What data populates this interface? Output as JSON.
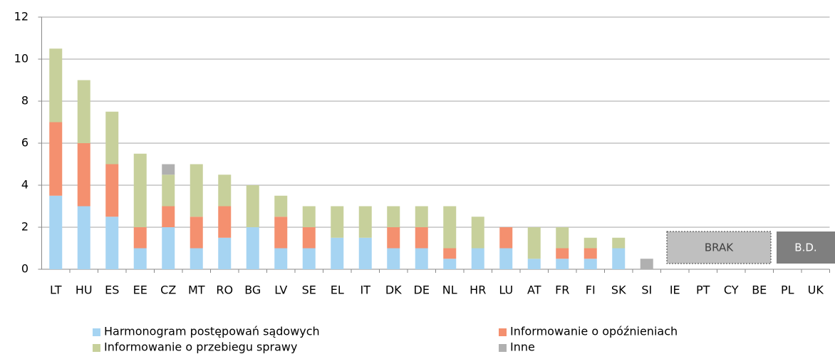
{
  "chart_data": {
    "type": "stacked_bar",
    "categories": [
      "LT",
      "HU",
      "ES",
      "EE",
      "CZ",
      "MT",
      "RO",
      "BG",
      "LV",
      "SE",
      "EL",
      "IT",
      "DK",
      "DE",
      "NL",
      "HR",
      "LU",
      "AT",
      "FR",
      "FI",
      "SK",
      "SI",
      "IE",
      "PT",
      "CY",
      "BE",
      "PL",
      "UK"
    ],
    "series": [
      {
        "name": "Harmonogram postępowań sądowych",
        "color": "#a6d4f2",
        "values": [
          3.5,
          3,
          2.5,
          1,
          2,
          1,
          1.5,
          2,
          1,
          1,
          1.5,
          1.5,
          1,
          1,
          0.5,
          1,
          1,
          0.5,
          0.5,
          0.5,
          1,
          0,
          null,
          null,
          null,
          null,
          null,
          null
        ]
      },
      {
        "name": "Informowanie o opóźnieniach",
        "color": "#f4906f",
        "values": [
          3.5,
          3,
          2.5,
          1,
          1,
          1.5,
          1.5,
          0,
          1.5,
          1,
          0,
          0,
          1,
          1,
          0.5,
          0,
          1,
          0,
          0.5,
          0.5,
          0,
          0,
          null,
          null,
          null,
          null,
          null,
          null
        ]
      },
      {
        "name": "Informowanie o przebiegu sprawy",
        "color": "#c7d09b",
        "values": [
          3.5,
          3,
          2.5,
          3.5,
          1.5,
          2.5,
          1.5,
          2,
          1,
          1,
          1.5,
          1.5,
          1,
          1,
          2,
          1.5,
          0,
          1.5,
          1,
          0.5,
          0.5,
          0,
          null,
          null,
          null,
          null,
          null,
          null
        ]
      },
      {
        "name": "Inne",
        "color": "#b0b0b0",
        "values": [
          0,
          0,
          0,
          0,
          0.5,
          0,
          0,
          0,
          0,
          0,
          0,
          0,
          0,
          0,
          0,
          0,
          0,
          0,
          0,
          0,
          0,
          0.5,
          null,
          null,
          null,
          null,
          null,
          null
        ]
      }
    ],
    "annotations": [
      "BRAK",
      "B.D."
    ],
    "ylim": [
      0,
      12
    ],
    "yticks": [
      0,
      2,
      4,
      6,
      8,
      10,
      12
    ],
    "grid": true
  }
}
